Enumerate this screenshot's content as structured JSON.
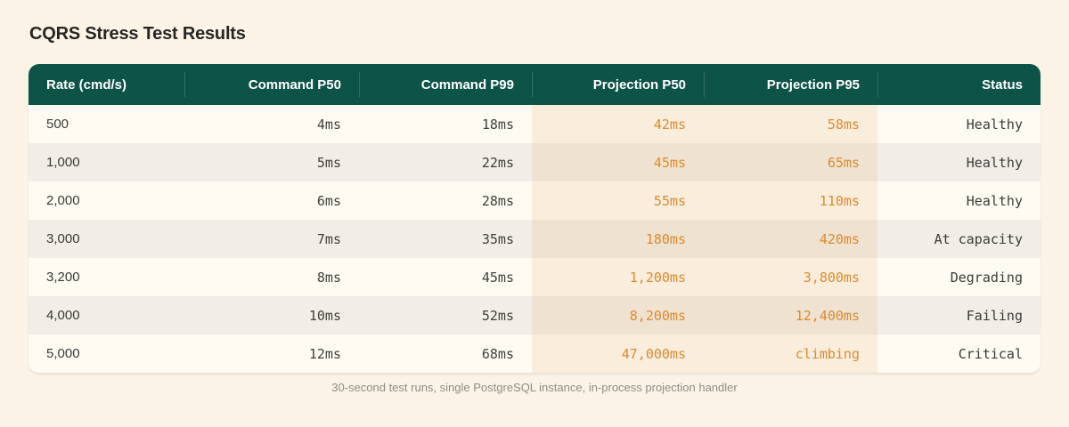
{
  "chart_data": {
    "type": "table",
    "title": "CQRS Stress Test Results",
    "columns": [
      "Rate (cmd/s)",
      "Command P50",
      "Command P99",
      "Projection P50",
      "Projection P95",
      "Status"
    ],
    "rows": [
      [
        "500",
        "4ms",
        "18ms",
        "42ms",
        "58ms",
        "Healthy"
      ],
      [
        "1,000",
        "5ms",
        "22ms",
        "45ms",
        "65ms",
        "Healthy"
      ],
      [
        "2,000",
        "6ms",
        "28ms",
        "55ms",
        "110ms",
        "Healthy"
      ],
      [
        "3,000",
        "7ms",
        "35ms",
        "180ms",
        "420ms",
        "At capacity"
      ],
      [
        "3,200",
        "8ms",
        "45ms",
        "1,200ms",
        "3,800ms",
        "Degrading"
      ],
      [
        "4,000",
        "10ms",
        "52ms",
        "8,200ms",
        "12,400ms",
        "Failing"
      ],
      [
        "5,000",
        "12ms",
        "68ms",
        "47,000ms",
        "climbing",
        "Critical"
      ]
    ],
    "footnote": "30-second test runs, single PostgreSQL instance, in-process projection handler",
    "highlight_columns": [
      "Projection P50",
      "Projection P95"
    ],
    "colors": {
      "page_bg": "#FAF3E6",
      "header_bg": "#0E5348",
      "accent_orange": "#DE8A2E",
      "row_odd": "#FEFBF3",
      "row_even": "#F1EDE7",
      "projection_cell_odd": "#FAEDDC",
      "projection_cell_even": "#EFE2D0"
    }
  }
}
